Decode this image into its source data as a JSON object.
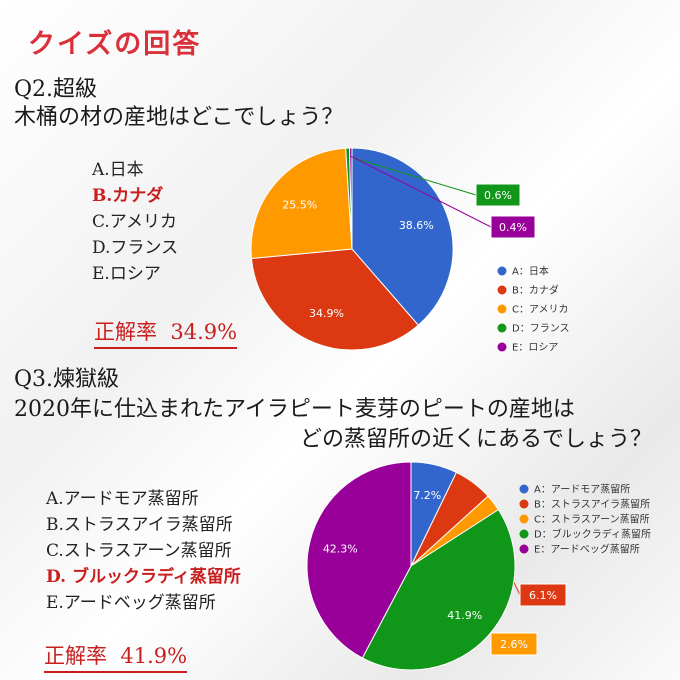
{
  "title": "クイズの回答",
  "q2": {
    "level": "Q2.超級",
    "question": "木桶の材の産地はどこでしょう？",
    "options": [
      "A.日本",
      "B.カナダ",
      "C.アメリカ",
      "D.フランス",
      "E.ロシア"
    ],
    "correct_index": 1,
    "rate_label": "正解率",
    "rate_value": "34.9%"
  },
  "q3": {
    "level": "Q3.煉獄級",
    "question_line1": "2020年に仕込まれたアイラピート麦芽のピートの産地は",
    "question_line2": "どの蒸留所の近くにあるでしょう？",
    "options": [
      "A.アードモア蒸留所",
      "B.ストラスアイラ蒸留所",
      "C.ストラスアーン蒸留所",
      "D. ブルックラディ蒸留所",
      "E.アードベッグ蒸留所"
    ],
    "correct_index": 3,
    "rate_label": "正解率",
    "rate_value": "41.9%"
  },
  "colors": {
    "A": "#3366cc",
    "B": "#dc3912",
    "C": "#ff9900",
    "D": "#109618",
    "E": "#990099",
    "correct_text": "#c81e1e",
    "title_text": "#d9303a"
  },
  "chart_data": [
    {
      "type": "pie",
      "categories": [
        "A：日本",
        "B：カナダ",
        "C：アメリカ",
        "D：フランス",
        "E：ロシア"
      ],
      "values": [
        38.6,
        34.9,
        25.5,
        0.6,
        0.4
      ],
      "labels": [
        "38.6%",
        "34.9%",
        "25.5%",
        "0.6%",
        "0.4%"
      ],
      "legend_position": "right"
    },
    {
      "type": "pie",
      "categories": [
        "A：アードモア蒸留所",
        "B：ストラスアイラ蒸留所",
        "C：ストラスアーン蒸留所",
        "D：ブルックラディ蒸留所",
        "E：アードベッグ蒸留所"
      ],
      "values": [
        7.2,
        6.1,
        2.6,
        41.9,
        42.3
      ],
      "labels": [
        "7.2%",
        "6.1%",
        "2.6%",
        "41.9%",
        "42.3%"
      ],
      "legend_position": "right"
    }
  ]
}
